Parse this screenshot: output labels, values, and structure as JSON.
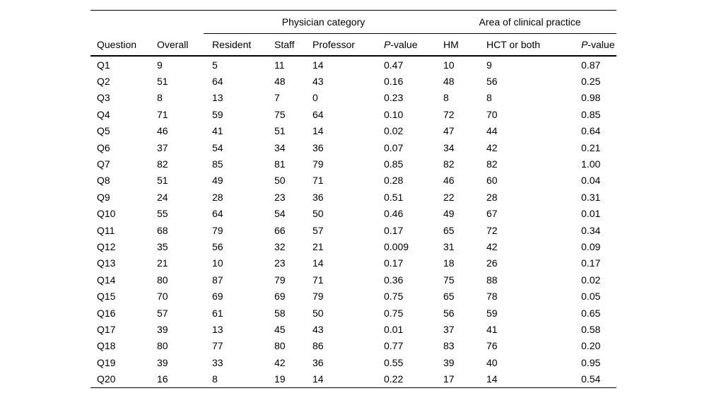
{
  "page": {
    "background_color": "#ffffff",
    "text_color": "#000000",
    "rule_color": "#000000"
  },
  "table": {
    "group_headers": [
      {
        "label": "Physician category"
      },
      {
        "label": "Area of clinical practice"
      }
    ],
    "column_headers": [
      "Question",
      "Overall",
      "Resident",
      "Staff",
      "Professor",
      "P-value",
      "HM",
      "HCT or both",
      "P-value"
    ],
    "p_value_header": {
      "italic_part": "P",
      "regular_part": "-value"
    },
    "rows": [
      [
        "Q1",
        "9",
        "5",
        "11",
        "14",
        "0.47",
        "10",
        "9",
        "0.87"
      ],
      [
        "Q2",
        "51",
        "64",
        "48",
        "43",
        "0.16",
        "48",
        "56",
        "0.25"
      ],
      [
        "Q3",
        "8",
        "13",
        "7",
        "0",
        "0.23",
        "8",
        "8",
        "0.98"
      ],
      [
        "Q4",
        "71",
        "59",
        "75",
        "64",
        "0.10",
        "72",
        "70",
        "0.85"
      ],
      [
        "Q5",
        "46",
        "41",
        "51",
        "14",
        "0.02",
        "47",
        "44",
        "0.64"
      ],
      [
        "Q6",
        "37",
        "54",
        "34",
        "36",
        "0.07",
        "34",
        "42",
        "0.21"
      ],
      [
        "Q7",
        "82",
        "85",
        "81",
        "79",
        "0.85",
        "82",
        "82",
        "1.00"
      ],
      [
        "Q8",
        "51",
        "49",
        "50",
        "71",
        "0.28",
        "46",
        "60",
        "0.04"
      ],
      [
        "Q9",
        "24",
        "28",
        "23",
        "36",
        "0.51",
        "22",
        "28",
        "0.31"
      ],
      [
        "Q10",
        "55",
        "64",
        "54",
        "50",
        "0.46",
        "49",
        "67",
        "0.01"
      ],
      [
        "Q11",
        "68",
        "79",
        "66",
        "57",
        "0.17",
        "65",
        "72",
        "0.34"
      ],
      [
        "Q12",
        "35",
        "56",
        "32",
        "21",
        "0.009",
        "31",
        "42",
        "0.09"
      ],
      [
        "Q13",
        "21",
        "10",
        "23",
        "14",
        "0.17",
        "18",
        "26",
        "0.17"
      ],
      [
        "Q14",
        "80",
        "87",
        "79",
        "71",
        "0.36",
        "75",
        "88",
        "0.02"
      ],
      [
        "Q15",
        "70",
        "69",
        "69",
        "79",
        "0.75",
        "65",
        "78",
        "0.05"
      ],
      [
        "Q16",
        "57",
        "61",
        "58",
        "50",
        "0.75",
        "56",
        "59",
        "0.65"
      ],
      [
        "Q17",
        "39",
        "13",
        "45",
        "43",
        "0.01",
        "37",
        "41",
        "0.58"
      ],
      [
        "Q18",
        "80",
        "77",
        "80",
        "86",
        "0.77",
        "83",
        "76",
        "0.20"
      ],
      [
        "Q19",
        "39",
        "33",
        "42",
        "36",
        "0.55",
        "39",
        "40",
        "0.95"
      ],
      [
        "Q20",
        "16",
        "8",
        "19",
        "14",
        "0.22",
        "17",
        "14",
        "0.54"
      ]
    ]
  }
}
